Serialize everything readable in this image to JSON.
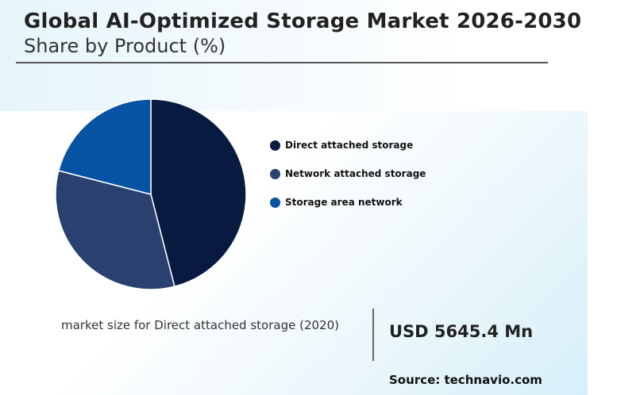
{
  "chart_data": {
    "type": "pie",
    "title": "Global AI-Optimized Storage Market 2026-2030",
    "subtitle": "Share by Product (%)",
    "categories": [
      "Direct attached storage",
      "Network attached storage",
      "Storage area network"
    ],
    "values": [
      46,
      33,
      21
    ],
    "colors": [
      "#071a40",
      "#2a4170",
      "#0653a3"
    ],
    "legend_position": "right"
  },
  "footer": {
    "market_size_label": "market size for Direct attached storage (2020)",
    "market_size_value": "USD 5645.4 Mn",
    "source": "Source: technavio.com"
  }
}
